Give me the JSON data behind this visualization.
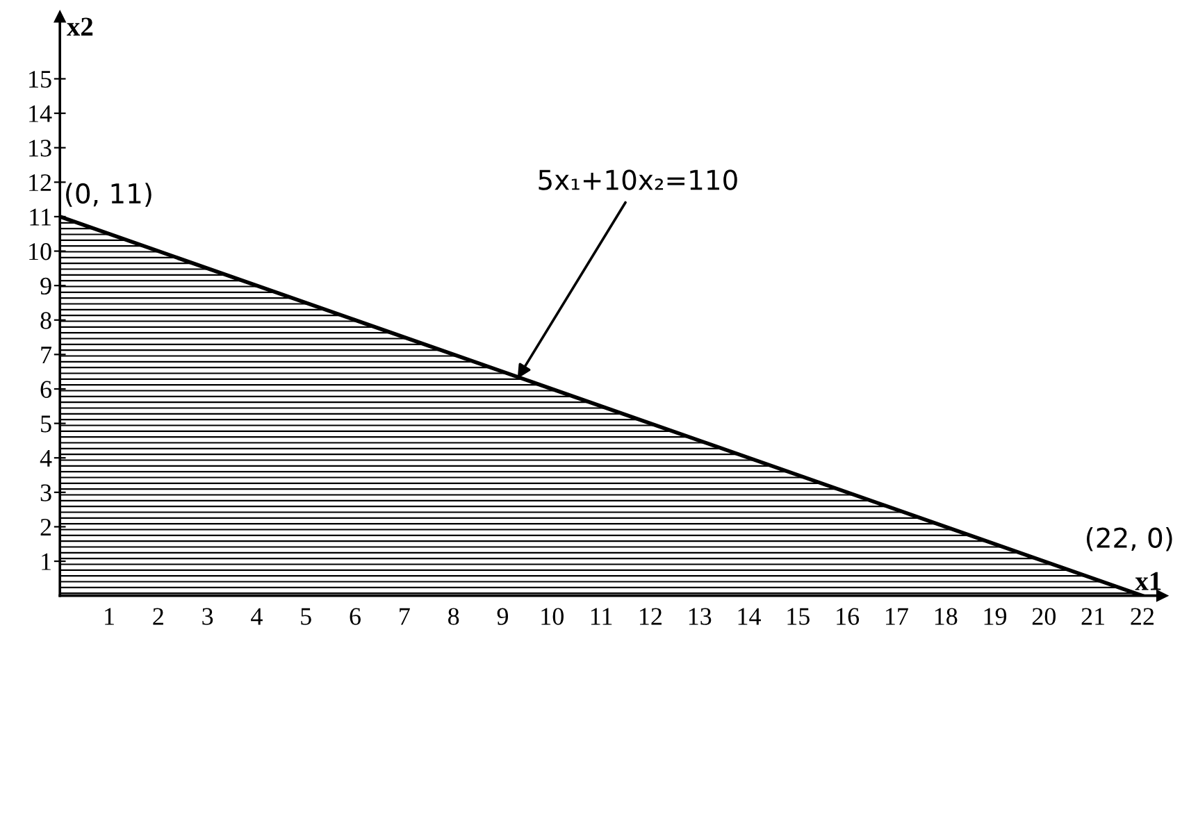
{
  "chart_data": {
    "type": "area",
    "xlabel": "x1",
    "ylabel": "x2",
    "x": [
      0,
      22
    ],
    "series": [
      {
        "color": "#000000",
        "values": [
          11,
          0
        ]
      }
    ],
    "xlim": [
      0,
      22.4
    ],
    "ylim": [
      0,
      16.8
    ],
    "xticks": [
      1,
      2,
      3,
      4,
      5,
      6,
      7,
      8,
      9,
      10,
      11,
      12,
      13,
      14,
      15,
      16,
      17,
      18,
      19,
      20,
      21,
      22
    ],
    "yticks": [
      1,
      2,
      3,
      4,
      5,
      6,
      7,
      8,
      9,
      10,
      11,
      12,
      13,
      14,
      15
    ],
    "grid": false,
    "line_style": "solid",
    "annotations": [
      {
        "text": "(0, 11)",
        "x": 0,
        "y": 11
      },
      {
        "text": "(22, 0)",
        "x": 22,
        "y": 0
      },
      {
        "text": "5x₁+10x₂=110",
        "x": 9.3,
        "y": 6.3
      }
    ]
  }
}
